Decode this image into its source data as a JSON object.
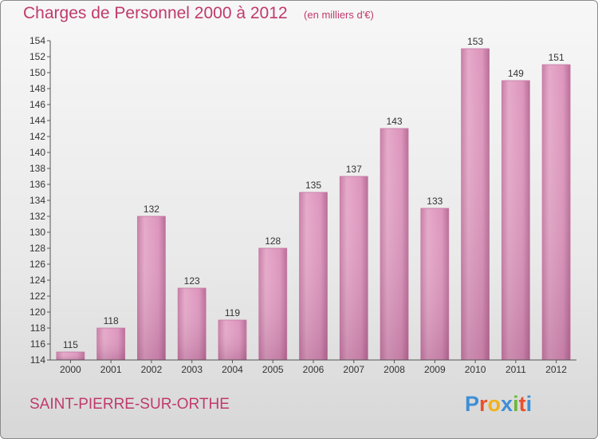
{
  "header": {
    "title": "Charges de Personnel 2000 à 2012",
    "subtitle": "(en milliers d'€)"
  },
  "footer": {
    "town": "SAINT-PIERRE-SUR-ORTHE",
    "logo_letters": [
      "P",
      "r",
      "o",
      "x",
      "i",
      "t",
      "i"
    ],
    "logo_colors": [
      "#3d8fd6",
      "#e9502a",
      "#f2b11a",
      "#3d8fd6",
      "#6cb73c",
      "#e9502a",
      "#3d8fd6"
    ]
  },
  "chart_data": {
    "type": "bar",
    "categories": [
      "2000",
      "2001",
      "2002",
      "2003",
      "2004",
      "2005",
      "2006",
      "2007",
      "2008",
      "2009",
      "2010",
      "2011",
      "2012"
    ],
    "values": [
      115,
      118,
      132,
      123,
      119,
      128,
      135,
      137,
      143,
      133,
      153,
      149,
      151
    ],
    "value_labels": [
      "115",
      "118",
      "132",
      "123",
      "119",
      "128",
      "135",
      "137",
      "143",
      "133",
      "153",
      "149",
      "151"
    ],
    "title": "Charges de Personnel 2000 à 2012",
    "xlabel": "",
    "ylabel": "",
    "ylim": [
      114,
      154
    ],
    "yticks": [
      "114",
      "116",
      "118",
      "120",
      "122",
      "124",
      "126",
      "128",
      "130",
      "132",
      "134",
      "136",
      "138",
      "140",
      "142",
      "144",
      "146",
      "148",
      "150",
      "152",
      "154"
    ],
    "grid": false,
    "bar_color": "#d98bb6"
  }
}
